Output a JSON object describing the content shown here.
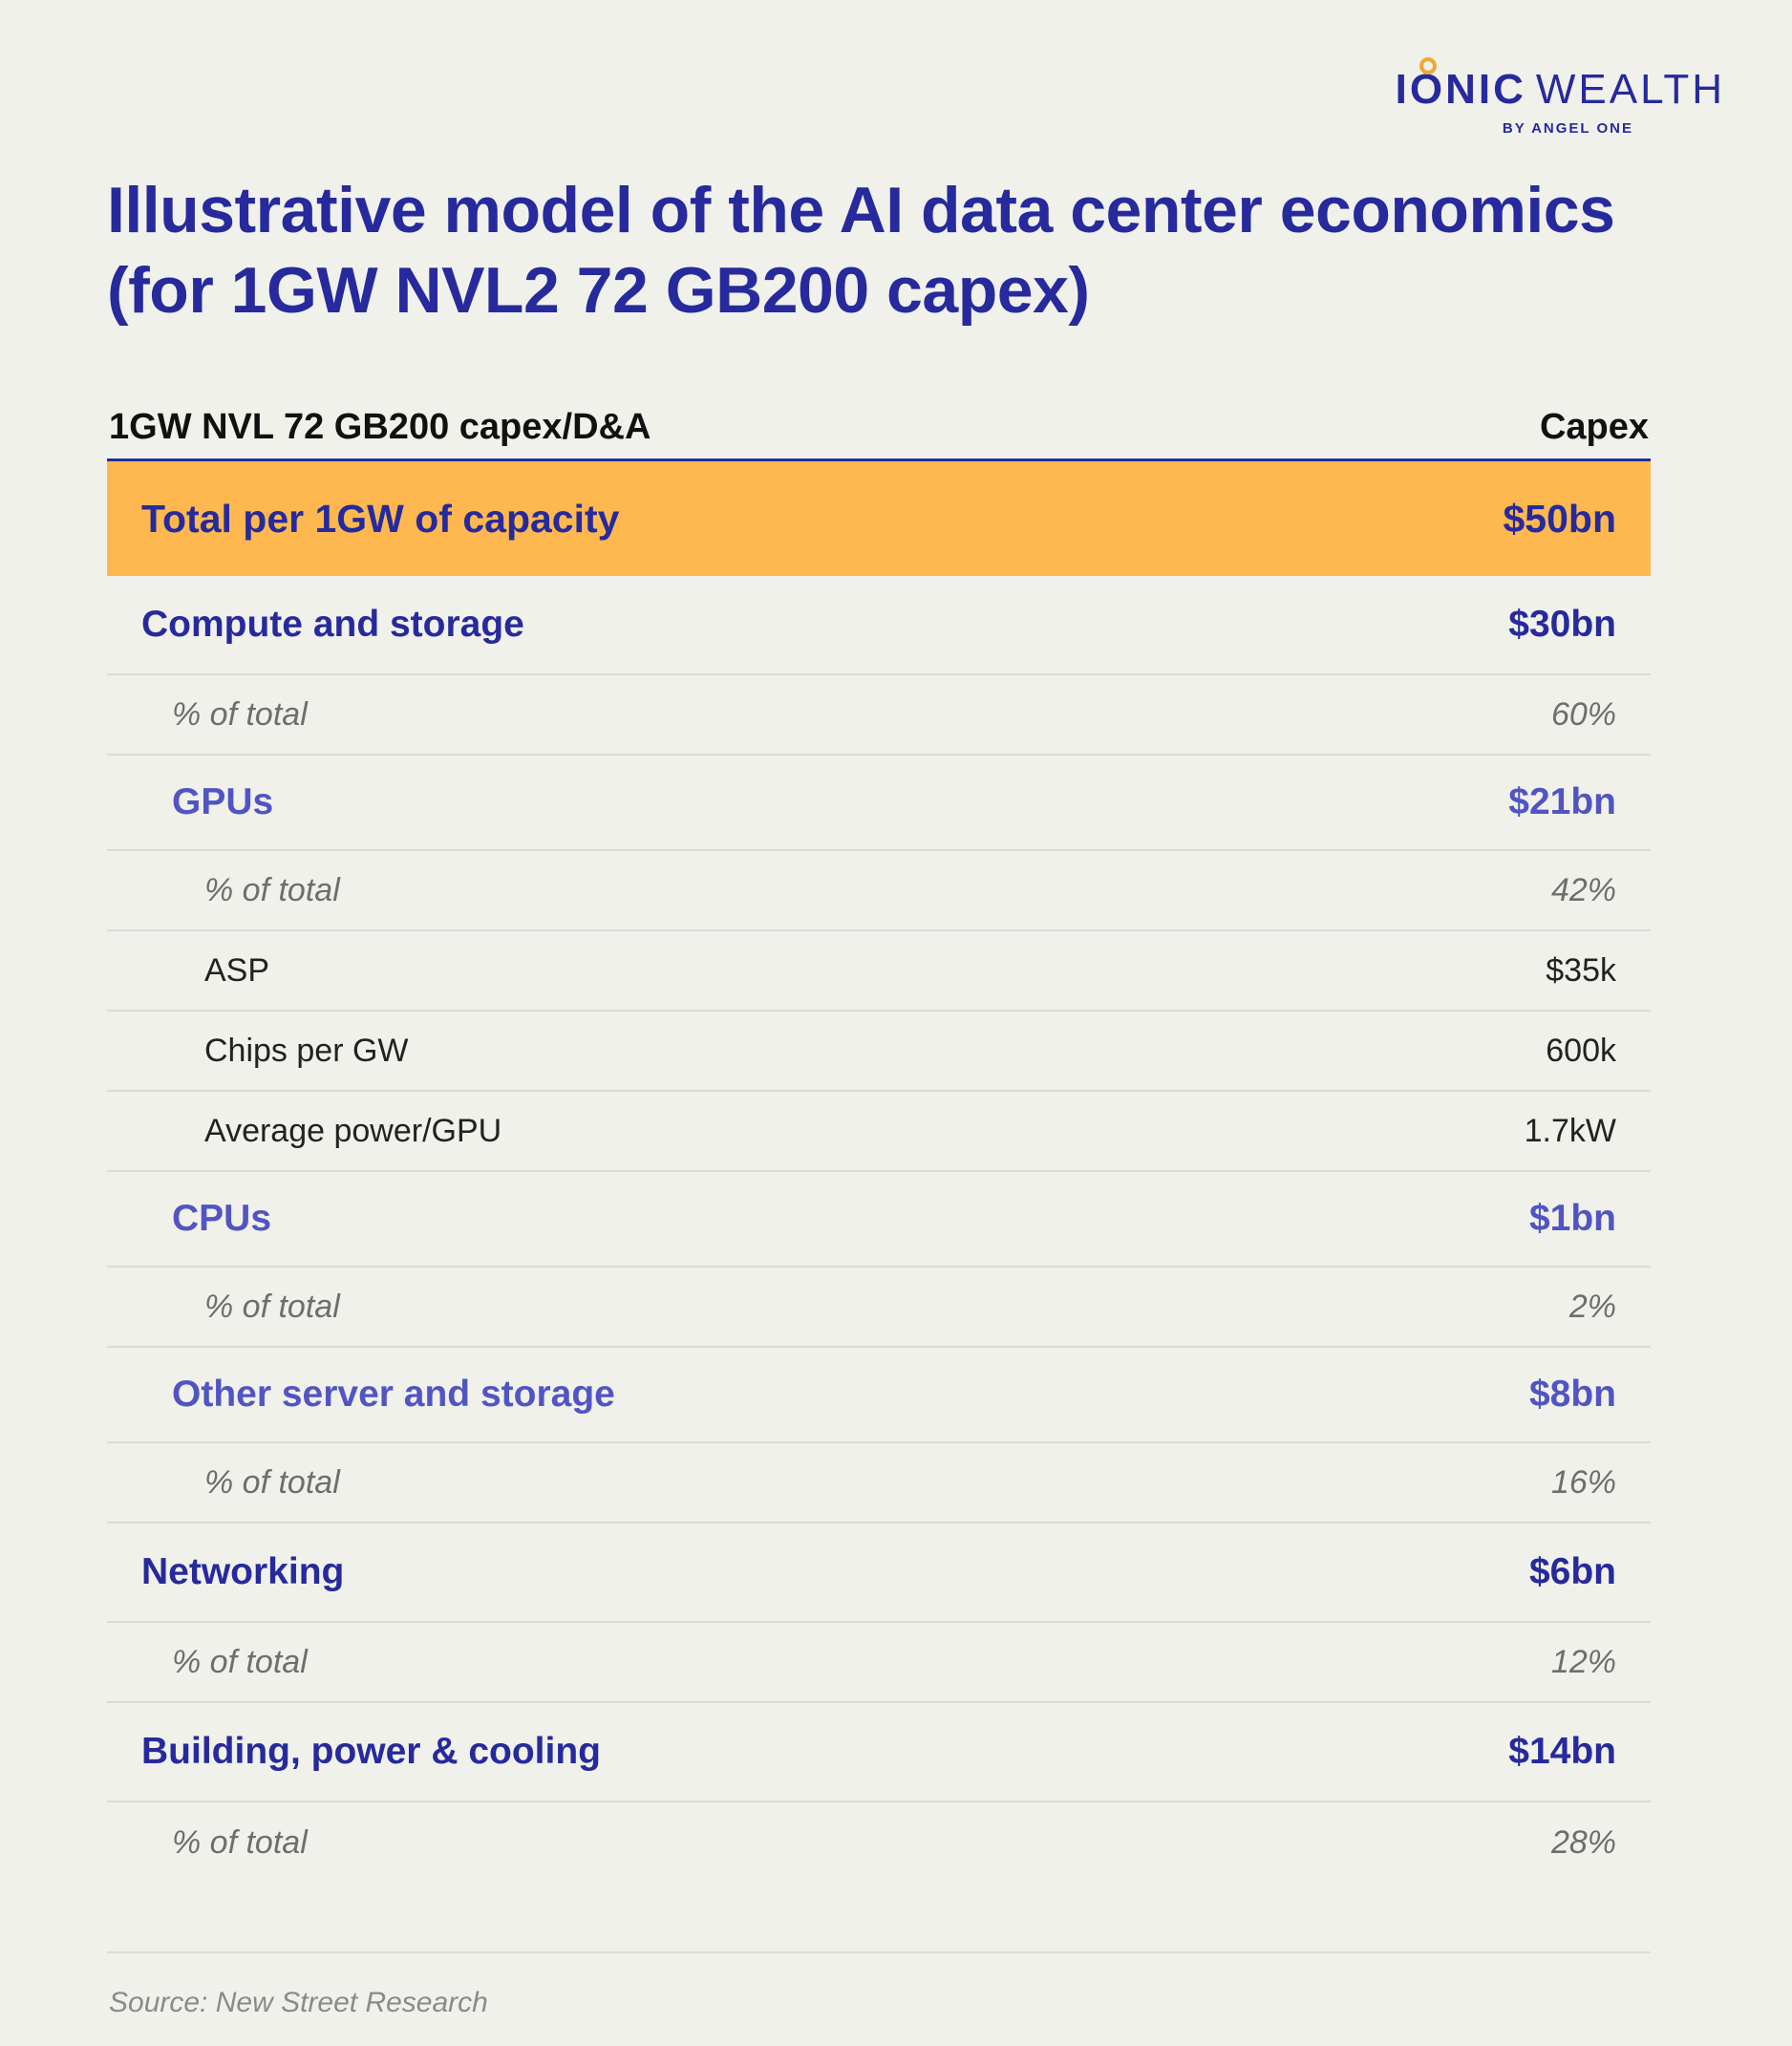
{
  "logo": {
    "ionic": "IONIC",
    "wealth": "WEALTH",
    "sub": "BY ANGEL ONE"
  },
  "title": "Illustrative model of the AI data center economics (for 1GW NVL2 72 GB200 capex)",
  "source": "Source: New Street Research",
  "chart_data": {
    "type": "table",
    "columns": [
      "1GW NVL 72 GB200 capex/D&A",
      "Capex"
    ],
    "rows": [
      {
        "kind": "total",
        "label": "Total per 1GW of capacity",
        "value": "$50bn"
      },
      {
        "kind": "l1",
        "label": "Compute and storage",
        "value": "$30bn"
      },
      {
        "kind": "l1pct",
        "label": "% of total",
        "value": "60%"
      },
      {
        "kind": "l2",
        "label": "GPUs",
        "value": "$21bn"
      },
      {
        "kind": "l2pct",
        "label": "% of total",
        "value": "42%"
      },
      {
        "kind": "l3",
        "label": "ASP",
        "value": "$35k"
      },
      {
        "kind": "l3",
        "label": "Chips per GW",
        "value": "600k"
      },
      {
        "kind": "l3",
        "label": "Average power/GPU",
        "value": "1.7kW"
      },
      {
        "kind": "l2",
        "label": "CPUs",
        "value": "$1bn"
      },
      {
        "kind": "l2pct",
        "label": "% of total",
        "value": "2%"
      },
      {
        "kind": "l2",
        "label": "Other server and storage",
        "value": "$8bn"
      },
      {
        "kind": "l2pct",
        "label": "% of total",
        "value": "16%"
      },
      {
        "kind": "l1",
        "label": "Networking",
        "value": "$6bn"
      },
      {
        "kind": "l1pct",
        "label": "% of total",
        "value": "12%"
      },
      {
        "kind": "l1",
        "label": "Building, power & cooling",
        "value": "$14bn"
      },
      {
        "kind": "l1pct",
        "label": "% of total",
        "value": "28%"
      }
    ]
  }
}
